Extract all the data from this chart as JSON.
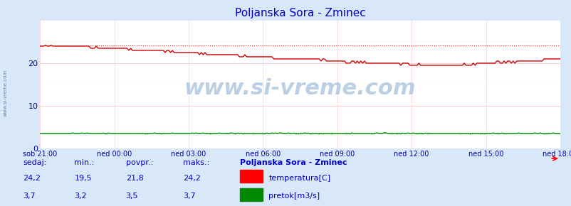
{
  "title": "Poljanska Sora - Zminec",
  "bg_color": "#d8e8f8",
  "plot_bg_color": "#ffffff",
  "grid_color_major": "#ffcccc",
  "grid_color_minor": "#ffe8e8",
  "ylim": [
    0,
    30
  ],
  "yticks": [
    0,
    10,
    20
  ],
  "xlabel_color": "#0000aa",
  "ylabel_color": "#0000aa",
  "title_color": "#0000cc",
  "xtick_labels": [
    "sob 21:00",
    "ned 00:00",
    "ned 03:00",
    "ned 06:00",
    "ned 09:00",
    "ned 12:00",
    "ned 15:00",
    "ned 18:00"
  ],
  "watermark": "www.si-vreme.com",
  "watermark_color": "#c8d8e8",
  "sidebar_text": "www.si-vreme.com",
  "temp_color": "#cc0000",
  "flow_color": "#008800",
  "temp_dotted_color": "#ff0000",
  "flow_dotted_color": "#00aa00",
  "legend_title": "Poljanska Sora - Zminec",
  "stats_labels": [
    "sedaj:",
    "min.:",
    "povpr.:",
    "maks.:"
  ],
  "temp_stats": [
    24.2,
    19.5,
    21.8,
    24.2
  ],
  "flow_stats": [
    3.7,
    3.2,
    3.5,
    3.7
  ],
  "temp_max_line": 24.2,
  "flow_max_line": 3.7,
  "n_points": 288
}
